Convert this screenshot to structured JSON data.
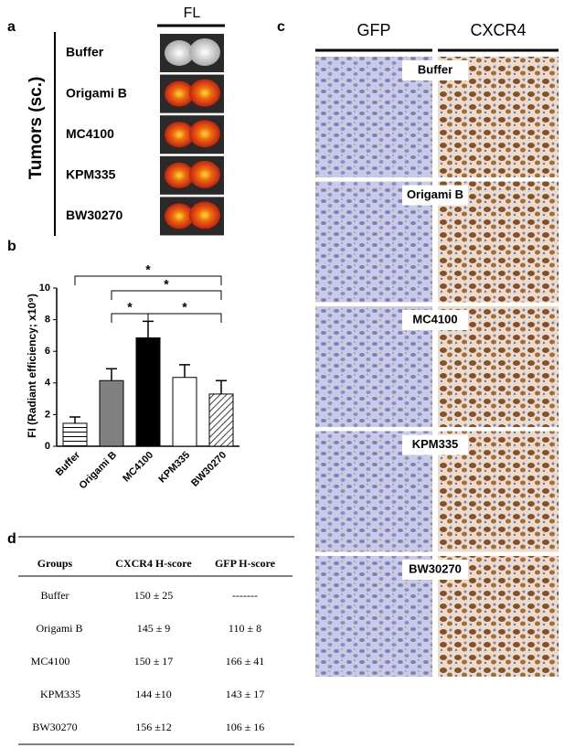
{
  "panel_a": {
    "label": "a",
    "header": "FL",
    "axis_label": "Tumors (sc.)",
    "rows": [
      "Buffer",
      "Origami B",
      "MC4100",
      "KPM335",
      "BW30270"
    ]
  },
  "chart_data": {
    "type": "bar",
    "label": "b",
    "y_label": "FI (Radiant efficiency; x10⁹)",
    "categories": [
      "Buffer",
      "Origami B",
      "MC4100",
      "KPM335",
      "BW30270"
    ],
    "values": [
      1.45,
      4.15,
      6.85,
      4.35,
      3.3
    ],
    "errors": [
      0.4,
      0.75,
      1.05,
      0.8,
      0.85
    ],
    "bar_styles": [
      "horizontal-hatch",
      "#808080",
      "#000000",
      "#ffffff",
      "diagonal-hatch"
    ],
    "ylim": [
      0,
      10
    ],
    "yticks": [
      0,
      2,
      4,
      6,
      8,
      10
    ],
    "significance": [
      {
        "groups": [
          "Buffer",
          "BW30270"
        ],
        "label": "*"
      },
      {
        "groups": [
          "Origami B",
          "BW30270"
        ],
        "label": "*"
      },
      {
        "groups": [
          "Origami B",
          "MC4100"
        ],
        "label": "*"
      },
      {
        "groups": [
          "MC4100",
          "BW30270"
        ],
        "label": "*"
      }
    ]
  },
  "panel_c": {
    "label": "c",
    "columns": [
      "GFP",
      "CXCR4"
    ],
    "rows": [
      "Buffer",
      "Origami B",
      "MC4100",
      "KPM335",
      "BW30270"
    ]
  },
  "table": {
    "label": "d",
    "header": [
      "Groups",
      "CXCR4 H-score",
      "GFP H-score"
    ],
    "rows": [
      [
        "Buffer",
        "150 ± 25",
        "-------"
      ],
      [
        "Origami B",
        "145 ± 9",
        "110 ± 8"
      ],
      [
        "MC4100",
        "150 ± 17",
        "166 ± 41"
      ],
      [
        "KPM335",
        "144 ±10",
        "143 ± 17"
      ],
      [
        "BW30270",
        "156 ±12",
        "106 ± 16"
      ]
    ]
  }
}
